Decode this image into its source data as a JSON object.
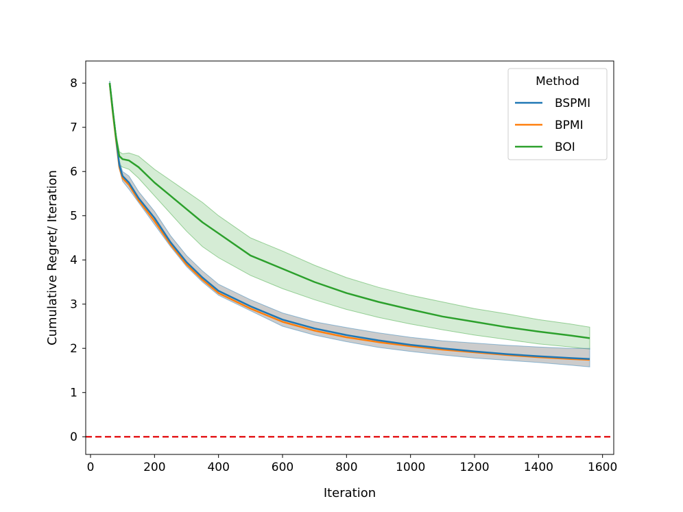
{
  "chart_data": {
    "type": "line",
    "xlabel": "Iteration",
    "ylabel": "Cumulative Regret/ Iteration",
    "xlim": [
      -15,
      1635
    ],
    "ylim": [
      -0.4,
      8.5
    ],
    "xticks": [
      0,
      200,
      400,
      600,
      800,
      1000,
      1200,
      1400,
      1600
    ],
    "yticks": [
      0,
      1,
      2,
      3,
      4,
      5,
      6,
      7,
      8
    ],
    "grid": false,
    "legend": {
      "title": "Method",
      "position": "top-right"
    },
    "reference_line": {
      "y": 0,
      "color": "#e41a1c",
      "style": "dashed"
    },
    "series": [
      {
        "name": "BSPMI",
        "color": "#1f77b4",
        "band_color": "#999999",
        "x": [
          60,
          70,
          80,
          90,
          100,
          120,
          150,
          200,
          250,
          300,
          350,
          400,
          500,
          600,
          700,
          800,
          900,
          1000,
          1100,
          1200,
          1300,
          1400,
          1500,
          1560
        ],
        "mean": [
          8.0,
          7.35,
          6.75,
          6.15,
          5.9,
          5.75,
          5.4,
          4.95,
          4.4,
          3.95,
          3.6,
          3.3,
          2.95,
          2.65,
          2.45,
          2.3,
          2.18,
          2.08,
          2.0,
          1.93,
          1.87,
          1.82,
          1.78,
          1.76
        ],
        "lower": [
          7.95,
          7.3,
          6.65,
          6.05,
          5.78,
          5.6,
          5.3,
          4.8,
          4.3,
          3.85,
          3.5,
          3.2,
          2.85,
          2.5,
          2.3,
          2.15,
          2.02,
          1.93,
          1.85,
          1.78,
          1.73,
          1.68,
          1.62,
          1.58
        ],
        "upper": [
          8.05,
          7.4,
          6.85,
          6.25,
          6.0,
          5.9,
          5.55,
          5.1,
          4.55,
          4.1,
          3.75,
          3.45,
          3.1,
          2.8,
          2.6,
          2.47,
          2.35,
          2.25,
          2.17,
          2.12,
          2.07,
          2.03,
          2.0,
          2.0
        ]
      },
      {
        "name": "BPMI",
        "color": "#ff7f0e",
        "x": [
          60,
          70,
          80,
          90,
          100,
          120,
          150,
          200,
          250,
          300,
          350,
          400,
          500,
          600,
          700,
          800,
          900,
          1000,
          1100,
          1200,
          1300,
          1400,
          1500,
          1560
        ],
        "mean": [
          7.98,
          7.3,
          6.7,
          6.1,
          5.85,
          5.7,
          5.35,
          4.88,
          4.35,
          3.9,
          3.55,
          3.25,
          2.9,
          2.6,
          2.4,
          2.25,
          2.14,
          2.05,
          1.97,
          1.91,
          1.85,
          1.8,
          1.76,
          1.74
        ],
        "lower": [
          7.93,
          7.25,
          6.6,
          6.0,
          5.72,
          5.55,
          5.22,
          4.7,
          4.2,
          3.78,
          3.43,
          3.13,
          2.8,
          2.47,
          2.28,
          2.12,
          2.0,
          1.91,
          1.83,
          1.77,
          1.72,
          1.67,
          1.61,
          1.57
        ],
        "upper": [
          8.03,
          7.35,
          6.8,
          6.2,
          5.98,
          5.85,
          5.48,
          5.05,
          4.5,
          4.05,
          3.7,
          3.4,
          3.05,
          2.75,
          2.55,
          2.42,
          2.3,
          2.21,
          2.13,
          2.08,
          2.03,
          2.0,
          1.98,
          1.98
        ]
      },
      {
        "name": "BOI",
        "color": "#2ca02c",
        "x": [
          60,
          70,
          80,
          90,
          100,
          120,
          150,
          200,
          250,
          300,
          350,
          400,
          500,
          600,
          700,
          800,
          900,
          1000,
          1100,
          1200,
          1300,
          1400,
          1500,
          1560
        ],
        "mean": [
          8.0,
          7.35,
          6.75,
          6.35,
          6.28,
          6.25,
          6.1,
          5.75,
          5.45,
          5.15,
          4.85,
          4.6,
          4.1,
          3.8,
          3.5,
          3.25,
          3.05,
          2.88,
          2.72,
          2.6,
          2.48,
          2.38,
          2.29,
          2.23
        ],
        "lower": [
          7.95,
          7.3,
          6.65,
          6.15,
          6.1,
          6.05,
          5.85,
          5.45,
          5.05,
          4.65,
          4.3,
          4.05,
          3.65,
          3.35,
          3.1,
          2.88,
          2.7,
          2.55,
          2.42,
          2.3,
          2.2,
          2.1,
          2.03,
          1.98
        ],
        "upper": [
          8.05,
          7.4,
          6.85,
          6.45,
          6.4,
          6.42,
          6.35,
          6.05,
          5.8,
          5.55,
          5.3,
          5.0,
          4.5,
          4.2,
          3.88,
          3.6,
          3.38,
          3.2,
          3.05,
          2.9,
          2.78,
          2.65,
          2.55,
          2.48
        ]
      }
    ]
  }
}
